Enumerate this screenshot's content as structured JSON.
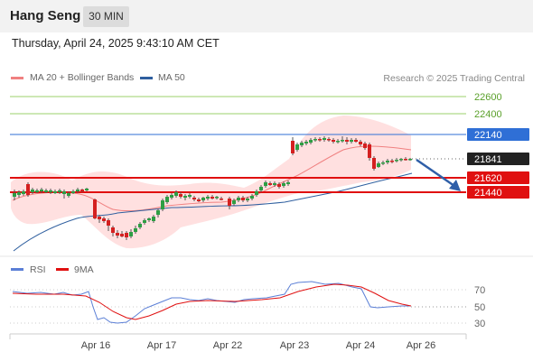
{
  "header": {
    "symbol": "Hang Seng",
    "timeframe": "30 MIN"
  },
  "timestamp": "Thursday, April 24, 2025 9:43:10 AM CET",
  "legend": [
    {
      "label": "MA 20 + Bollinger Bands",
      "color": "#f08080"
    },
    {
      "label": "MA 50",
      "color": "#2f5f9f"
    }
  ],
  "copyright": "Research © 2025 Trading Central",
  "price_levels": [
    {
      "value": "22600",
      "kind": "target",
      "color": "#7fbf3f"
    },
    {
      "value": "22400",
      "kind": "target",
      "color": "#7fbf3f"
    },
    {
      "value": "22140",
      "kind": "pivot",
      "color": "#2f6fd6"
    },
    {
      "value": "21841",
      "kind": "last",
      "color": "#222222"
    },
    {
      "value": "21620",
      "kind": "support",
      "color": "#e01010"
    },
    {
      "value": "21440",
      "kind": "support",
      "color": "#e01010"
    }
  ],
  "rsi_legend": [
    {
      "label": "RSI",
      "color": "#5b7fd6"
    },
    {
      "label": "9MA",
      "color": "#e01010"
    }
  ],
  "rsi_levels": [
    "70",
    "50",
    "30"
  ],
  "x_labels": [
    "Apr 16",
    "Apr 17",
    "Apr 22",
    "Apr 23",
    "Apr 24",
    "Apr 26"
  ],
  "chart_data": {
    "type": "candlestick",
    "price_axis_labels": [
      22600,
      22400,
      22140,
      21841,
      21620,
      21440
    ],
    "last_price": 21841,
    "rsi_axis_labels": [
      70,
      50,
      30
    ]
  }
}
